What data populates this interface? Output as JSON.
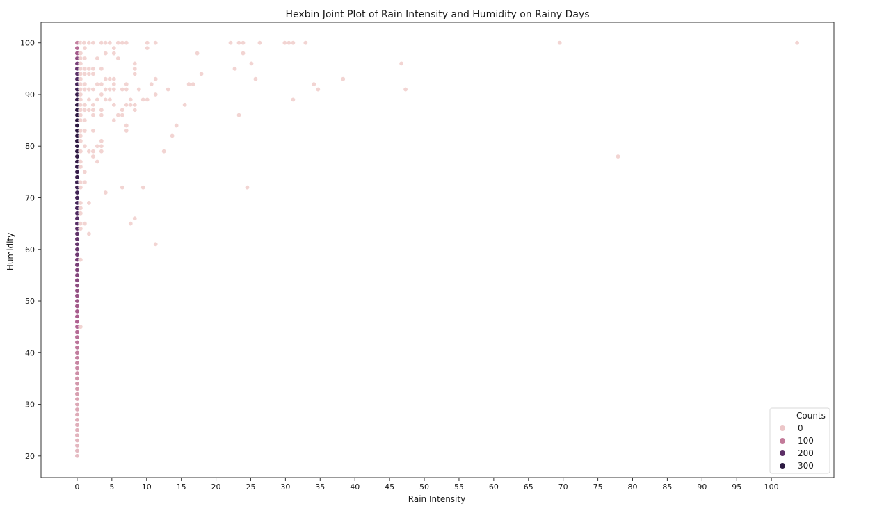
{
  "chart_data": {
    "type": "scatter",
    "title": "Hexbin Joint Plot of Rain Intensity and Humidity on Rainy Days",
    "xlabel": "Rain Intensity",
    "ylabel": "Humidity",
    "xlim": [
      -5.2,
      109
    ],
    "ylim": [
      15.8,
      104
    ],
    "x_ticks": [
      0,
      5,
      10,
      15,
      20,
      25,
      30,
      35,
      40,
      45,
      50,
      55,
      60,
      65,
      70,
      75,
      80,
      85,
      90,
      95,
      100
    ],
    "y_ticks": [
      20,
      30,
      40,
      50,
      60,
      70,
      80,
      90,
      100
    ],
    "grid": false,
    "legend": {
      "title": "Counts",
      "placement": "lower-right",
      "entries": [
        {
          "label": "0",
          "color": "#ecc6c8"
        },
        {
          "label": "100",
          "color": "#c27a99"
        },
        {
          "label": "200",
          "color": "#5c2f66"
        },
        {
          "label": "300",
          "color": "#2c1a42"
        }
      ]
    },
    "hue_scale": {
      "stops": [
        [
          0,
          "#f2d4d2"
        ],
        [
          60,
          "#d59aad"
        ],
        [
          110,
          "#ad5f8f"
        ],
        [
          170,
          "#6f3a73"
        ],
        [
          230,
          "#48275c"
        ],
        [
          320,
          "#2b173f"
        ]
      ]
    },
    "points": [
      [
        0,
        20,
        25
      ],
      [
        0,
        21,
        28
      ],
      [
        0,
        22,
        30
      ],
      [
        0,
        23,
        32
      ],
      [
        0,
        24,
        34
      ],
      [
        0,
        25,
        36
      ],
      [
        0,
        26,
        38
      ],
      [
        0,
        27,
        40
      ],
      [
        0,
        28,
        42
      ],
      [
        0,
        29,
        44
      ],
      [
        0,
        30,
        46
      ],
      [
        0,
        31,
        50
      ],
      [
        0,
        32,
        55
      ],
      [
        0,
        33,
        58
      ],
      [
        0,
        34,
        62
      ],
      [
        0,
        35,
        66
      ],
      [
        0,
        36,
        70
      ],
      [
        0,
        37,
        74
      ],
      [
        0,
        38,
        78
      ],
      [
        0,
        39,
        82
      ],
      [
        0,
        40,
        85
      ],
      [
        0,
        41,
        88
      ],
      [
        0,
        42,
        92
      ],
      [
        0,
        43,
        96
      ],
      [
        0,
        44,
        100
      ],
      [
        0,
        45,
        104
      ],
      [
        0,
        46,
        108
      ],
      [
        0,
        47,
        112
      ],
      [
        0,
        48,
        116
      ],
      [
        0,
        49,
        120
      ],
      [
        0,
        50,
        125
      ],
      [
        0,
        51,
        130
      ],
      [
        0,
        52,
        135
      ],
      [
        0,
        53,
        140
      ],
      [
        0,
        54,
        145
      ],
      [
        0,
        55,
        150
      ],
      [
        0,
        56,
        155
      ],
      [
        0,
        57,
        160
      ],
      [
        0,
        58,
        165
      ],
      [
        0,
        59,
        172
      ],
      [
        0,
        60,
        180
      ],
      [
        0,
        61,
        185
      ],
      [
        0,
        62,
        190
      ],
      [
        0,
        63,
        195
      ],
      [
        0,
        64,
        200
      ],
      [
        0,
        65,
        205
      ],
      [
        0,
        66,
        210
      ],
      [
        0,
        67,
        220
      ],
      [
        0,
        68,
        230
      ],
      [
        0,
        69,
        240
      ],
      [
        0,
        70,
        250
      ],
      [
        0,
        71,
        255
      ],
      [
        0,
        72,
        260
      ],
      [
        0,
        73,
        270
      ],
      [
        0,
        74,
        280
      ],
      [
        0,
        75,
        285
      ],
      [
        0,
        76,
        290
      ],
      [
        0,
        77,
        295
      ],
      [
        0,
        78,
        300
      ],
      [
        0,
        79,
        305
      ],
      [
        0,
        80,
        310
      ],
      [
        0,
        81,
        315
      ],
      [
        0,
        82,
        318
      ],
      [
        0,
        83,
        320
      ],
      [
        0,
        84,
        322
      ],
      [
        0,
        85,
        320
      ],
      [
        0,
        86,
        315
      ],
      [
        0,
        87,
        310
      ],
      [
        0,
        88,
        300
      ],
      [
        0,
        89,
        290
      ],
      [
        0,
        90,
        280
      ],
      [
        0,
        91,
        260
      ],
      [
        0,
        92,
        240
      ],
      [
        0,
        93,
        220
      ],
      [
        0,
        94,
        200
      ],
      [
        0,
        95,
        180
      ],
      [
        0,
        96,
        160
      ],
      [
        0,
        97,
        140
      ],
      [
        0,
        98,
        120
      ],
      [
        0,
        99,
        100
      ],
      [
        0,
        100,
        80
      ],
      [
        0.5,
        100,
        0
      ],
      [
        0.5,
        98,
        0
      ],
      [
        0.5,
        97,
        0
      ],
      [
        0.5,
        96,
        0
      ],
      [
        0.5,
        95,
        0
      ],
      [
        0.5,
        94,
        0
      ],
      [
        0.5,
        93,
        0
      ],
      [
        0.5,
        92,
        0
      ],
      [
        0.5,
        91,
        0
      ],
      [
        0.5,
        90,
        0
      ],
      [
        0.5,
        89,
        0
      ],
      [
        0.5,
        88,
        0
      ],
      [
        0.5,
        87,
        0
      ],
      [
        0.5,
        86,
        0
      ],
      [
        0.5,
        85,
        0
      ],
      [
        0.5,
        83,
        0
      ],
      [
        0.5,
        82,
        0
      ],
      [
        0.5,
        81,
        0
      ],
      [
        0.5,
        79,
        0
      ],
      [
        0.5,
        77,
        0
      ],
      [
        0.5,
        76,
        0
      ],
      [
        0.5,
        73,
        0
      ],
      [
        0.5,
        72,
        0
      ],
      [
        0.5,
        69,
        0
      ],
      [
        0.5,
        68,
        0
      ],
      [
        0.5,
        67,
        0
      ],
      [
        0.5,
        65,
        0
      ],
      [
        0.5,
        64,
        0
      ],
      [
        0.5,
        58,
        0
      ],
      [
        0.5,
        45,
        0
      ],
      [
        1,
        100,
        0
      ],
      [
        1.1,
        99,
        0
      ],
      [
        1.1,
        97,
        0
      ],
      [
        1.1,
        95,
        0
      ],
      [
        1.1,
        94,
        0
      ],
      [
        1.1,
        92,
        0
      ],
      [
        1.1,
        91,
        0
      ],
      [
        1.1,
        88,
        0
      ],
      [
        1.1,
        87,
        0
      ],
      [
        1.1,
        85,
        0
      ],
      [
        1.1,
        83,
        0
      ],
      [
        1.1,
        80,
        0
      ],
      [
        1.1,
        75,
        0
      ],
      [
        1.1,
        73,
        0
      ],
      [
        1.1,
        65,
        0
      ],
      [
        1.7,
        100,
        0
      ],
      [
        1.7,
        95,
        0
      ],
      [
        1.7,
        94,
        0
      ],
      [
        1.7,
        91,
        0
      ],
      [
        1.7,
        89,
        0
      ],
      [
        1.7,
        87,
        0
      ],
      [
        1.7,
        79,
        0
      ],
      [
        1.7,
        69,
        0
      ],
      [
        1.7,
        63,
        0
      ],
      [
        2.3,
        100,
        0
      ],
      [
        2.3,
        95,
        0
      ],
      [
        2.3,
        94,
        0
      ],
      [
        2.3,
        91,
        0
      ],
      [
        2.3,
        88,
        0
      ],
      [
        2.3,
        87,
        0
      ],
      [
        2.3,
        86,
        0
      ],
      [
        2.3,
        83,
        0
      ],
      [
        2.3,
        79,
        0
      ],
      [
        2.3,
        78,
        0
      ],
      [
        2.9,
        97,
        0
      ],
      [
        2.9,
        92,
        0
      ],
      [
        2.9,
        89,
        0
      ],
      [
        2.9,
        80,
        0
      ],
      [
        2.9,
        77,
        0
      ],
      [
        3.5,
        100,
        0
      ],
      [
        3.5,
        95,
        0
      ],
      [
        3.5,
        92,
        0
      ],
      [
        3.5,
        90,
        0
      ],
      [
        3.5,
        87,
        0
      ],
      [
        3.5,
        86,
        0
      ],
      [
        3.5,
        81,
        0
      ],
      [
        3.5,
        80,
        0
      ],
      [
        3.5,
        79,
        0
      ],
      [
        4.1,
        100,
        0
      ],
      [
        4.1,
        98,
        0
      ],
      [
        4.1,
        93,
        0
      ],
      [
        4.1,
        91,
        0
      ],
      [
        4.1,
        89,
        0
      ],
      [
        4.1,
        71,
        0
      ],
      [
        4.7,
        100,
        0
      ],
      [
        4.7,
        93,
        0
      ],
      [
        4.7,
        91,
        0
      ],
      [
        4.7,
        89,
        0
      ],
      [
        5.3,
        99,
        0
      ],
      [
        5.3,
        98,
        0
      ],
      [
        5.3,
        93,
        0
      ],
      [
        5.3,
        92,
        0
      ],
      [
        5.3,
        91,
        0
      ],
      [
        5.3,
        88,
        0
      ],
      [
        5.3,
        85,
        0
      ],
      [
        5.9,
        100,
        0
      ],
      [
        5.9,
        97,
        0
      ],
      [
        5.9,
        86,
        0
      ],
      [
        6.5,
        100,
        0
      ],
      [
        6.5,
        91,
        0
      ],
      [
        6.5,
        87,
        0
      ],
      [
        6.5,
        86,
        0
      ],
      [
        6.5,
        72,
        0
      ],
      [
        7.1,
        100,
        0
      ],
      [
        7.1,
        92,
        0
      ],
      [
        7.1,
        91,
        0
      ],
      [
        7.1,
        88,
        0
      ],
      [
        7.1,
        84,
        0
      ],
      [
        7.1,
        83,
        0
      ],
      [
        7.7,
        89,
        0
      ],
      [
        7.7,
        88,
        0
      ],
      [
        7.7,
        65,
        0
      ],
      [
        8.3,
        96,
        0
      ],
      [
        8.3,
        95,
        0
      ],
      [
        8.3,
        94,
        0
      ],
      [
        8.3,
        88,
        0
      ],
      [
        8.3,
        87,
        0
      ],
      [
        8.3,
        66,
        0
      ],
      [
        8.9,
        91,
        0
      ],
      [
        9.5,
        89,
        0
      ],
      [
        9.5,
        72,
        0
      ],
      [
        10.1,
        100,
        0
      ],
      [
        10.1,
        99,
        0
      ],
      [
        10.1,
        89,
        0
      ],
      [
        10.7,
        92,
        0
      ],
      [
        11.3,
        100,
        0
      ],
      [
        11.3,
        93,
        0
      ],
      [
        11.3,
        90,
        0
      ],
      [
        11.3,
        61,
        0
      ],
      [
        12.5,
        79,
        0
      ],
      [
        13.1,
        91,
        0
      ],
      [
        13.7,
        82,
        0
      ],
      [
        14.3,
        84,
        0
      ],
      [
        15.5,
        88,
        0
      ],
      [
        16.1,
        92,
        0
      ],
      [
        16.7,
        92,
        0
      ],
      [
        17.3,
        98,
        0
      ],
      [
        17.9,
        94,
        0
      ],
      [
        22.1,
        100,
        0
      ],
      [
        22.7,
        95,
        0
      ],
      [
        23.3,
        100,
        0
      ],
      [
        23.3,
        86,
        0
      ],
      [
        23.9,
        100,
        0
      ],
      [
        23.9,
        98,
        0
      ],
      [
        24.5,
        72,
        0
      ],
      [
        25.1,
        96,
        0
      ],
      [
        25.7,
        93,
        0
      ],
      [
        26.3,
        100,
        0
      ],
      [
        29.9,
        100,
        0
      ],
      [
        30.5,
        100,
        0
      ],
      [
        31.1,
        100,
        0
      ],
      [
        31.1,
        89,
        0
      ],
      [
        32.9,
        100,
        0
      ],
      [
        34.1,
        92,
        0
      ],
      [
        34.7,
        91,
        0
      ],
      [
        38.3,
        93,
        0
      ],
      [
        46.7,
        96,
        0
      ],
      [
        47.3,
        91,
        0
      ],
      [
        69.5,
        100,
        0
      ],
      [
        77.9,
        78,
        0
      ],
      [
        103.7,
        100,
        0
      ]
    ]
  }
}
